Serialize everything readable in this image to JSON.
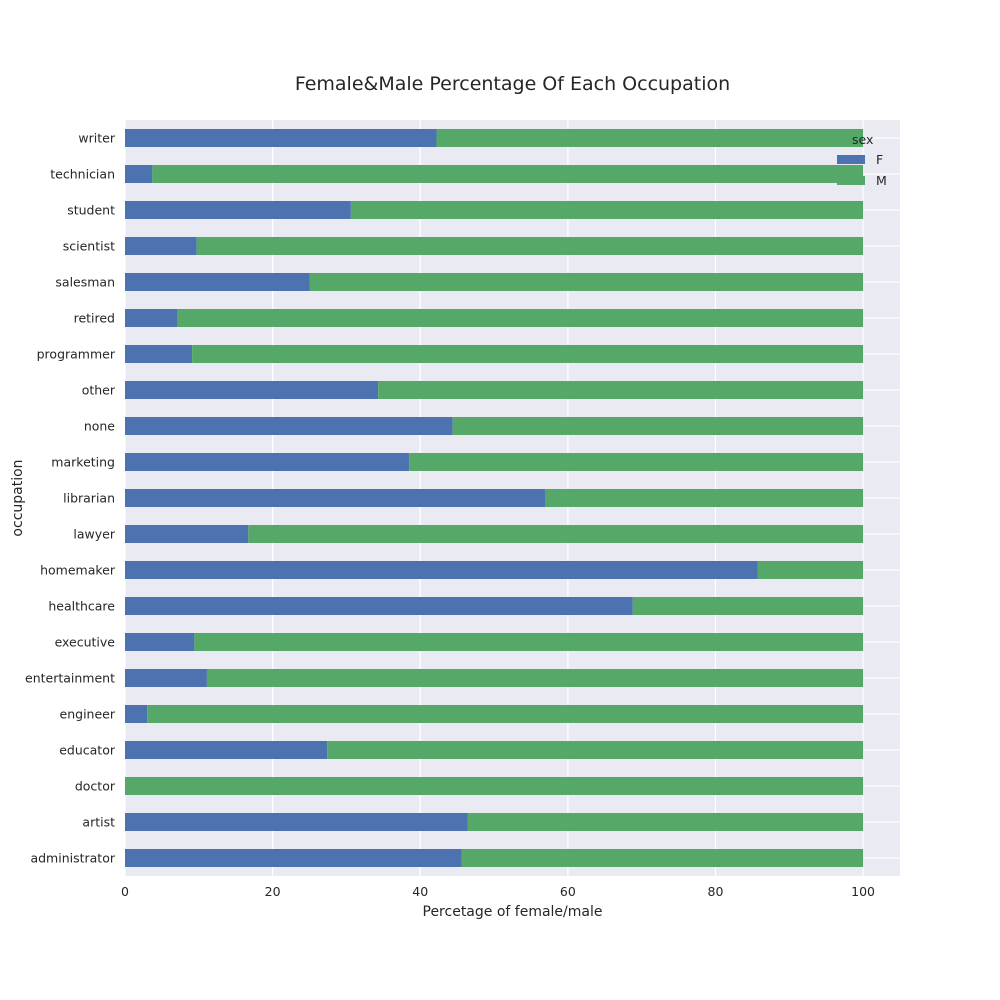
{
  "chart_data": {
    "type": "bar",
    "orientation": "horizontal",
    "stacked": true,
    "title": "Female&Male Percentage Of Each Occupation",
    "xlabel": "Percetage of female/male",
    "ylabel": "occupation",
    "xlim": [
      0,
      105
    ],
    "xticks": [
      0,
      20,
      40,
      60,
      80,
      100
    ],
    "grid": true,
    "legend": {
      "title": "sex",
      "position": "top-right"
    },
    "categories": [
      "administrator",
      "artist",
      "doctor",
      "educator",
      "engineer",
      "entertainment",
      "executive",
      "healthcare",
      "homemaker",
      "lawyer",
      "librarian",
      "marketing",
      "none",
      "other",
      "programmer",
      "retired",
      "salesman",
      "scientist",
      "student",
      "technician",
      "writer"
    ],
    "series": [
      {
        "name": "F",
        "color": "#4c72b0",
        "values": [
          45.6,
          46.4,
          0.0,
          27.4,
          3.0,
          11.1,
          9.4,
          68.8,
          85.7,
          16.7,
          56.9,
          38.5,
          44.4,
          34.3,
          9.1,
          7.1,
          25.0,
          9.7,
          30.6,
          3.7,
          42.2
        ]
      },
      {
        "name": "M",
        "color": "#55a868",
        "values": [
          54.4,
          53.6,
          100.0,
          72.6,
          97.0,
          88.9,
          90.6,
          31.2,
          14.3,
          83.3,
          43.1,
          61.5,
          55.6,
          65.7,
          90.9,
          92.9,
          75.0,
          90.3,
          69.4,
          96.3,
          57.8
        ]
      }
    ]
  }
}
